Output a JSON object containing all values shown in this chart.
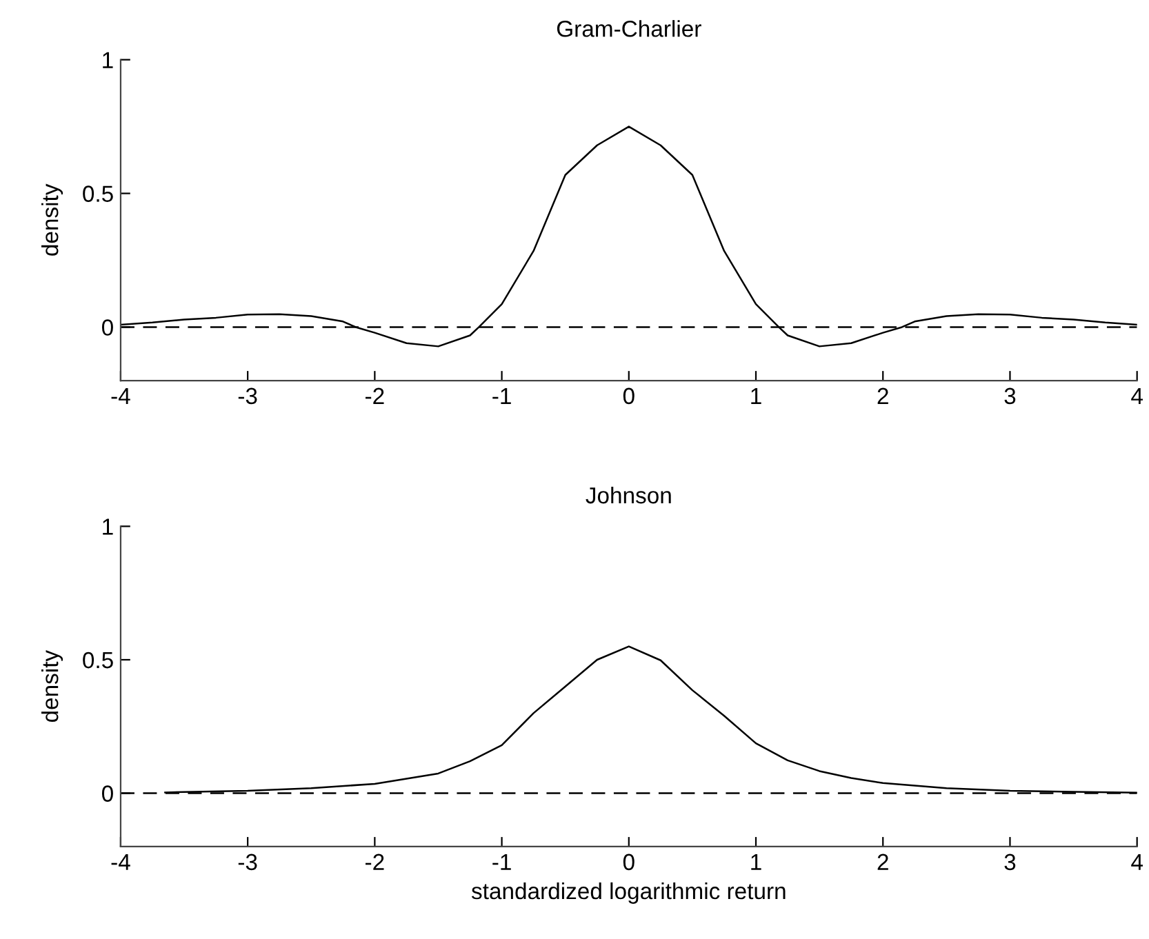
{
  "chart_data": [
    {
      "type": "line",
      "title": "Gram-Charlier",
      "ylabel": "density",
      "series": [
        {
          "color": "#000000",
          "x": [
            -4,
            -3.75,
            -3.5,
            -3.25,
            -3,
            -2.75,
            -2.5,
            -2.25,
            -2.15,
            -2,
            -1.75,
            -1.5,
            -1.25,
            -1.18,
            -1,
            -0.75,
            -0.5,
            -0.25,
            0,
            0.25,
            0.5,
            0.75,
            1,
            1.18,
            1.25,
            1.5,
            1.75,
            2,
            2.15,
            2.25,
            2.5,
            2.75,
            3,
            3.25,
            3.5,
            3.75,
            4
          ],
          "values": [
            0.009,
            0.017,
            0.028,
            0.035,
            0.047,
            0.048,
            0.041,
            0.021,
            0,
            -0.021,
            -0.06,
            -0.072,
            -0.031,
            0,
            0.086,
            0.285,
            0.569,
            0.68,
            0.75,
            0.68,
            0.569,
            0.285,
            0.086,
            0,
            -0.031,
            -0.072,
            -0.06,
            -0.021,
            0,
            0.021,
            0.041,
            0.048,
            0.047,
            0.035,
            0.028,
            0.017,
            0.009
          ]
        }
      ],
      "xlim": [
        -4,
        4
      ],
      "ylim": [
        -0.2,
        1
      ],
      "xticks": [
        -4,
        -3,
        -2,
        -1,
        0,
        1,
        2,
        3,
        4
      ],
      "yticks": [
        0,
        0.5,
        1
      ],
      "ref_lines": [
        {
          "axis": "y",
          "value": 0,
          "color": "#000000",
          "line_style": "dashed"
        }
      ],
      "grid": false
    },
    {
      "type": "line",
      "title": "Johnson",
      "ylabel": "density",
      "xlabel": "standardized logarithmic return",
      "series": [
        {
          "color": "#000000",
          "x": [
            -3.65,
            -3,
            -2.5,
            -2,
            -1.5,
            -1.25,
            -1,
            -0.75,
            -0.5,
            -0.25,
            0,
            0.25,
            0.5,
            0.75,
            1,
            1.25,
            1.5,
            1.75,
            2,
            2.5,
            3,
            3.5,
            4
          ],
          "values": [
            0.003,
            0.009,
            0.019,
            0.035,
            0.074,
            0.12,
            0.18,
            0.3,
            0.4,
            0.5,
            0.55,
            0.498,
            0.386,
            0.29,
            0.187,
            0.123,
            0.083,
            0.057,
            0.038,
            0.019,
            0.009,
            0.005,
            0.002
          ]
        }
      ],
      "xlim": [
        -4,
        4
      ],
      "ylim": [
        -0.2,
        1
      ],
      "xticks": [
        -4,
        -3,
        -2,
        -1,
        0,
        1,
        2,
        3,
        4
      ],
      "yticks": [
        0,
        0.5,
        1
      ],
      "ref_lines": [
        {
          "axis": "y",
          "value": 0,
          "color": "#000000",
          "line_style": "dashed"
        }
      ],
      "grid": false
    }
  ]
}
